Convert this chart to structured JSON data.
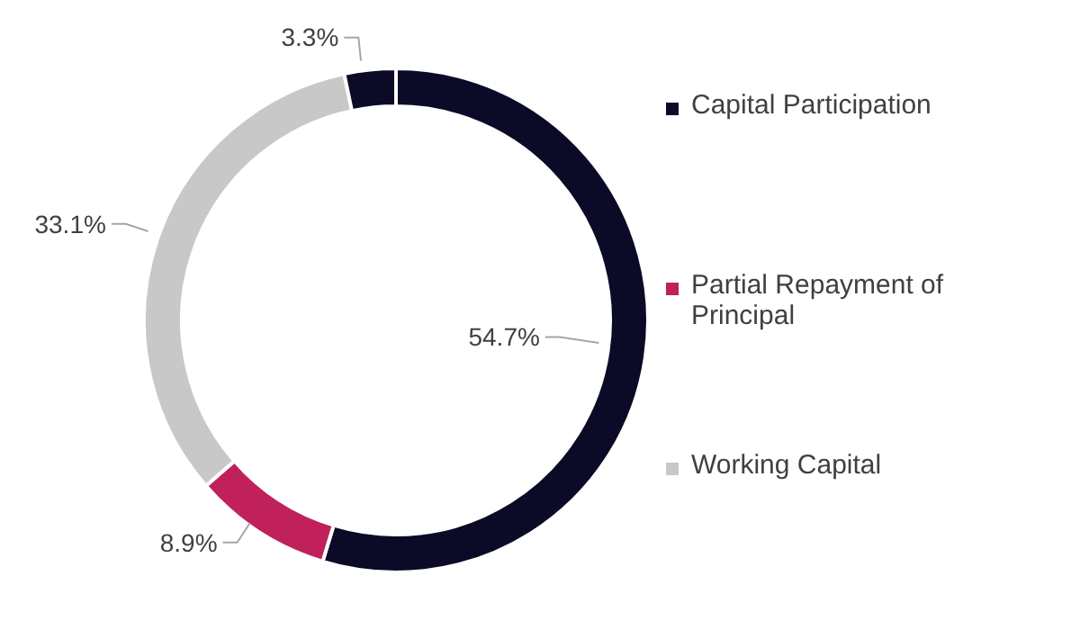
{
  "chart_data": {
    "type": "donut",
    "categories": [
      "Capital Participation",
      "Partial Repayment of Principal",
      "Working Capital",
      null
    ],
    "values": [
      54.7,
      8.9,
      33.1,
      3.3
    ],
    "value_labels": [
      "54.7%",
      "8.9%",
      "33.1%",
      "3.3%"
    ],
    "colors": [
      "#0b0b28",
      "#c0215a",
      "#c8c8c8",
      "#0b0b28"
    ],
    "legend": "right"
  }
}
